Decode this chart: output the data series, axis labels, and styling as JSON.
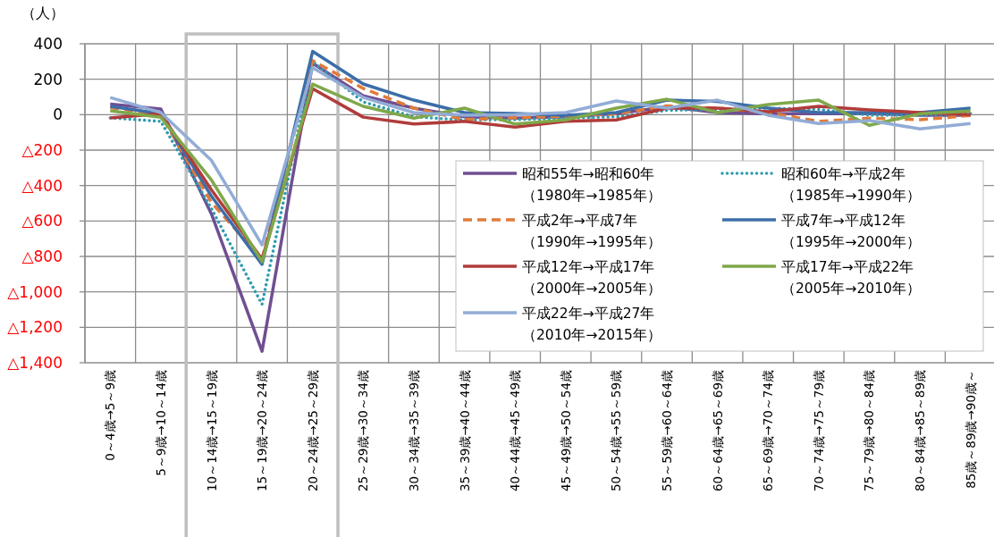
{
  "chart_data": {
    "type": "line",
    "ylabel": "（人）",
    "categories": [
      "0～4歳→5～9歳",
      "5～9歳→10～14歳",
      "10～14歳→15～19歳",
      "15～19歳→20～24歳",
      "20～24歳→25～29歳",
      "25～29歳→30～34歳",
      "30～34歳→35～39歳",
      "35～39歳→40～44歳",
      "40～44歳→45～49歳",
      "45～49歳→50～54歳",
      "50～54歳→55～59歳",
      "55～59歳→60～64歳",
      "60～64歳→65～69歳",
      "65～69歳→70～74歳",
      "70～74歳→75～79歳",
      "75～79歳→80～84歳",
      "80～84歳→85～89歳",
      "85歳～89歳→90歳～"
    ],
    "ylim": [
      -1400,
      400
    ],
    "yticks": [
      400,
      200,
      0,
      {
        "value": -200,
        "label": "△200"
      },
      {
        "value": -400,
        "label": "△400"
      },
      {
        "value": -600,
        "label": "△600"
      },
      {
        "value": -800,
        "label": "△800"
      },
      {
        "value": -1000,
        "label": "△1,000"
      },
      {
        "value": -1200,
        "label": "△1,200"
      },
      {
        "value": -1400,
        "label": "△1,400"
      }
    ],
    "grid": true,
    "legend": "bottom right",
    "marker": "none",
    "series": [
      {
        "name": "昭和55年→昭和60年（1980年→1985年）",
        "color": "#6f4f92",
        "line_style": "solid",
        "values": [
          60,
          32,
          -560,
          -1335,
          290,
          106,
          37,
          -12,
          -20,
          -12,
          5,
          45,
          12,
          5,
          5,
          5,
          -3,
          -3
        ]
      },
      {
        "name": "昭和60年→平成2年（1985年→1990年）",
        "color": "#2e9bb0",
        "line_style": "dotted",
        "values": [
          -18,
          -38,
          -530,
          -1070,
          300,
          72,
          -12,
          -30,
          -28,
          -20,
          -12,
          24,
          30,
          37,
          30,
          -3,
          -3,
          5
        ]
      },
      {
        "name": "平成2年→平成7年（1990年→1995年）",
        "color": "#e07b39",
        "line_style": "dashed",
        "values": [
          40,
          0,
          -495,
          -815,
          305,
          148,
          37,
          -28,
          -17,
          -8,
          5,
          50,
          37,
          12,
          -38,
          -20,
          -28,
          -5
        ]
      },
      {
        "name": "平成7年→平成12年（1995年→2000年）",
        "color": "#3c6ea8",
        "line_style": "solid",
        "values": [
          47,
          5,
          -460,
          -845,
          357,
          173,
          82,
          12,
          7,
          -3,
          12,
          82,
          75,
          37,
          12,
          12,
          12,
          37
        ]
      },
      {
        "name": "平成12年→平成17年（2000年→2005年）",
        "color": "#b03c3a",
        "line_style": "solid",
        "values": [
          -18,
          5,
          -424,
          -815,
          147,
          -14,
          -53,
          -38,
          -70,
          -38,
          -30,
          37,
          37,
          17,
          47,
          27,
          12,
          0
        ]
      },
      {
        "name": "平成17年→平成22年（2005年→2010年）",
        "color": "#7fa84a",
        "line_style": "solid",
        "values": [
          22,
          -15,
          -368,
          -830,
          172,
          47,
          -20,
          37,
          -53,
          -30,
          37,
          87,
          12,
          57,
          82,
          -60,
          5,
          20
        ]
      },
      {
        "name": "平成22年→平成27年（2010年→2015年）",
        "color": "#92acd6",
        "line_style": "solid",
        "values": [
          97,
          12,
          -258,
          -735,
          265,
          97,
          12,
          -3,
          0,
          12,
          77,
          37,
          82,
          -3,
          -50,
          -33,
          -80,
          -50
        ]
      }
    ]
  }
}
